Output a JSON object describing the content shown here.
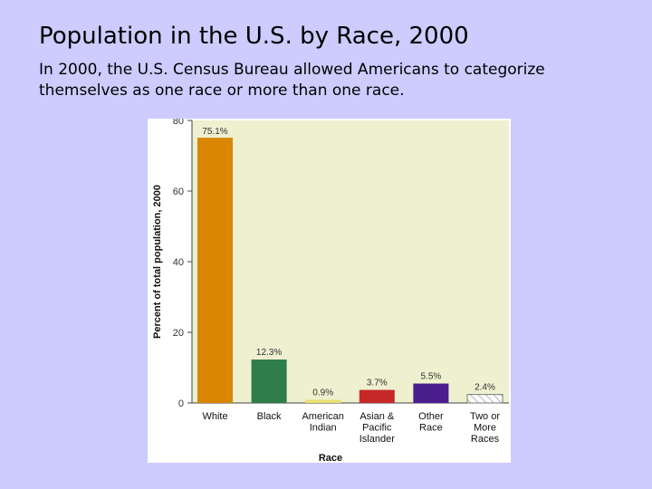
{
  "slide": {
    "title": "Population in the U.S. by Race, 2000",
    "subtitle": "In 2000, the U.S. Census Bureau allowed Americans to categorize themselves as one race or more than one race."
  },
  "chart_data": {
    "type": "bar",
    "title": "",
    "xlabel": "Race",
    "ylabel": "Percent of total population, 2000",
    "ylim": [
      0,
      80
    ],
    "yticks": [
      0,
      20,
      40,
      60,
      80
    ],
    "grid": false,
    "categories": [
      [
        "White"
      ],
      [
        "Black"
      ],
      [
        "American",
        "Indian"
      ],
      [
        "Asian &",
        "Pacific",
        "Islander"
      ],
      [
        "Other",
        "Race"
      ],
      [
        "Two or",
        "More",
        "Races"
      ]
    ],
    "values": [
      75.1,
      12.3,
      0.9,
      3.7,
      5.5,
      2.4
    ],
    "value_labels": [
      "75.1%",
      "12.3%",
      "0.9%",
      "3.7%",
      "5.5%",
      "2.4%"
    ],
    "colors": [
      "#d98600",
      "#2e7d4a",
      "#e8e070",
      "#c62828",
      "#4a1d8c",
      "hatched"
    ]
  }
}
